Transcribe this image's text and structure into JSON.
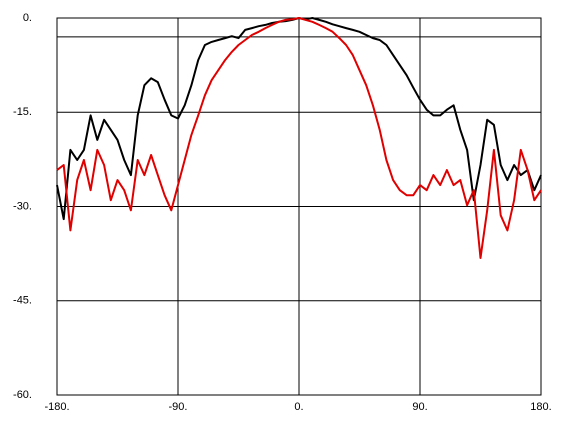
{
  "chart_data": {
    "type": "line",
    "x": [
      -180,
      -175,
      -170,
      -165,
      -160,
      -155,
      -150,
      -145,
      -140,
      -135,
      -130,
      -125,
      -120,
      -115,
      -110,
      -105,
      -100,
      -95,
      -90,
      -85,
      -80,
      -75,
      -70,
      -65,
      -60,
      -55,
      -50,
      -45,
      -40,
      -35,
      -30,
      -25,
      -20,
      -15,
      -10,
      -5,
      0,
      5,
      10,
      15,
      20,
      25,
      30,
      35,
      40,
      45,
      50,
      55,
      60,
      65,
      70,
      75,
      80,
      85,
      90,
      95,
      100,
      105,
      110,
      115,
      120,
      125,
      130,
      135,
      140,
      145,
      150,
      155,
      160,
      165,
      170,
      175,
      180
    ],
    "series": [
      {
        "color": "#000000",
        "values": [
          -26.6,
          -32,
          -21,
          -22.6,
          -21,
          -15.5,
          -19.4,
          -16.2,
          -17.8,
          -19.4,
          -22.6,
          -25,
          -15.5,
          -10.7,
          -9.6,
          -10.2,
          -13,
          -15.5,
          -16,
          -13.9,
          -10.7,
          -6.7,
          -4.3,
          -3.8,
          -3.5,
          -3.2,
          -2.9,
          -3.2,
          -1.9,
          -1.6,
          -1.3,
          -1.1,
          -0.8,
          -0.6,
          -0.5,
          -0.3,
          0,
          -0.2,
          0,
          -0.3,
          -0.6,
          -1,
          -1.3,
          -1.6,
          -1.9,
          -2.2,
          -2.7,
          -3.2,
          -3.5,
          -4.3,
          -5.9,
          -7.5,
          -9.1,
          -11.1,
          -13,
          -14.6,
          -15.5,
          -15.5,
          -14.6,
          -13.9,
          -17.8,
          -21,
          -29,
          -23.4,
          -16.2,
          -17,
          -23.4,
          -25.8,
          -23.4,
          -25,
          -24.2,
          -27.4,
          -25
        ]
      },
      {
        "color": "#e00000",
        "values": [
          -24.2,
          -23.4,
          -33.8,
          -25.8,
          -22.6,
          -27.4,
          -21,
          -23.4,
          -29,
          -25.8,
          -27.4,
          -30.6,
          -22.6,
          -25,
          -21.8,
          -25,
          -28.2,
          -30.6,
          -26.6,
          -22.6,
          -18.6,
          -15.5,
          -12.3,
          -9.9,
          -8.3,
          -6.7,
          -5.4,
          -4.3,
          -3.5,
          -2.7,
          -2.2,
          -1.6,
          -1.1,
          -0.6,
          -0.3,
          -0.2,
          0,
          -0.3,
          -0.6,
          -1.1,
          -1.6,
          -2.2,
          -3.2,
          -4.3,
          -5.9,
          -8.3,
          -10.7,
          -13.9,
          -17.8,
          -22.6,
          -25.8,
          -27.4,
          -28.2,
          -28.2,
          -26.6,
          -27.4,
          -25,
          -26.6,
          -24.2,
          -26.6,
          -25.8,
          -29.8,
          -27.4,
          -38.2,
          -30.6,
          -21,
          -31.4,
          -33.8,
          -29,
          -21,
          -24.2,
          -29,
          -27.4
        ]
      }
    ],
    "xlim": [
      -180,
      180
    ],
    "xticks": [
      {
        "value": -180,
        "label": "-180."
      },
      {
        "value": -90,
        "label": "-90."
      },
      {
        "value": 0,
        "label": "0."
      },
      {
        "value": 90,
        "label": "90."
      },
      {
        "value": 180,
        "label": "180."
      }
    ],
    "ylim": [
      -60,
      0
    ],
    "yticks": [
      {
        "value": -60,
        "label": "-60."
      },
      {
        "value": -45,
        "label": "-45."
      },
      {
        "value": -30,
        "label": "-30."
      },
      {
        "value": -15,
        "label": "-15."
      },
      {
        "value": 0,
        "label": "0."
      }
    ],
    "ref_line": -3,
    "grid": true
  }
}
